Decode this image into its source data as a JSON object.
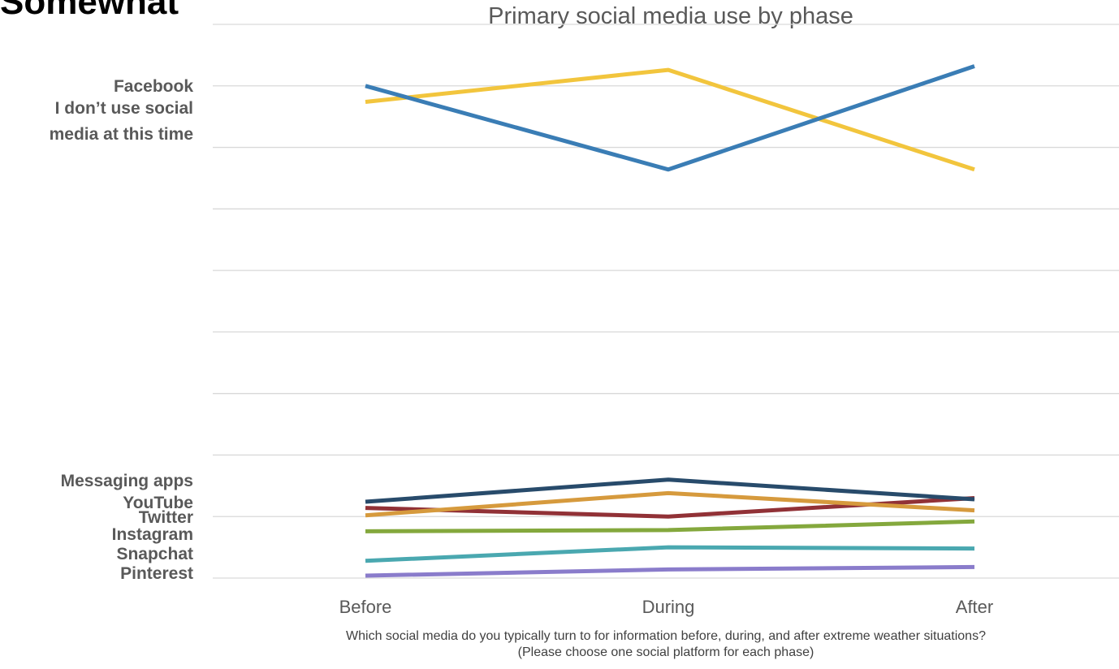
{
  "cut_heading": "Somewhat",
  "chart_data": {
    "type": "line",
    "title": "Primary social media use by phase",
    "categories": [
      "Before",
      "During",
      "After"
    ],
    "caption_lines": [
      "Which social media do you typically turn to for information before, during, and after extreme weather situations?",
      "(Please choose one social platform for each phase)"
    ],
    "ylim": [
      0,
      0.45
    ],
    "grid": true,
    "legend": "left, inline series labels",
    "series": [
      {
        "name": "Facebook",
        "color": "#3A7DB5",
        "values": [
          0.4,
          0.332,
          0.416
        ]
      },
      {
        "name": "I don’t use social media at this time",
        "color": "#F2C53D",
        "values": [
          0.387,
          0.413,
          0.332
        ]
      },
      {
        "name": "Messaging apps",
        "color": "#284B6B",
        "values": [
          0.062,
          0.08,
          0.064
        ]
      },
      {
        "name": "YouTube",
        "color": "#D69A3D",
        "values": [
          0.051,
          0.069,
          0.055
        ]
      },
      {
        "name": "Twitter",
        "color": "#913136",
        "values": [
          0.057,
          0.05,
          0.065
        ]
      },
      {
        "name": "Instagram",
        "color": "#84A83D",
        "values": [
          0.038,
          0.039,
          0.046
        ]
      },
      {
        "name": "Snapchat",
        "color": "#4AA8B0",
        "values": [
          0.014,
          0.025,
          0.024
        ]
      },
      {
        "name": "Pinterest",
        "color": "#8A7CCB",
        "values": [
          0.002,
          0.007,
          0.009
        ]
      }
    ],
    "series_labels": [
      {
        "lines": [
          "Facebook"
        ]
      },
      {
        "lines": [
          "I don’t use social",
          "media at this time"
        ]
      },
      {
        "lines": [
          "Messaging apps"
        ]
      },
      {
        "lines": [
          "YouTube"
        ]
      },
      {
        "lines": [
          "Twitter"
        ]
      },
      {
        "lines": [
          "Instagram"
        ]
      },
      {
        "lines": [
          "Snapchat"
        ]
      },
      {
        "lines": [
          "Pinterest"
        ]
      }
    ]
  }
}
